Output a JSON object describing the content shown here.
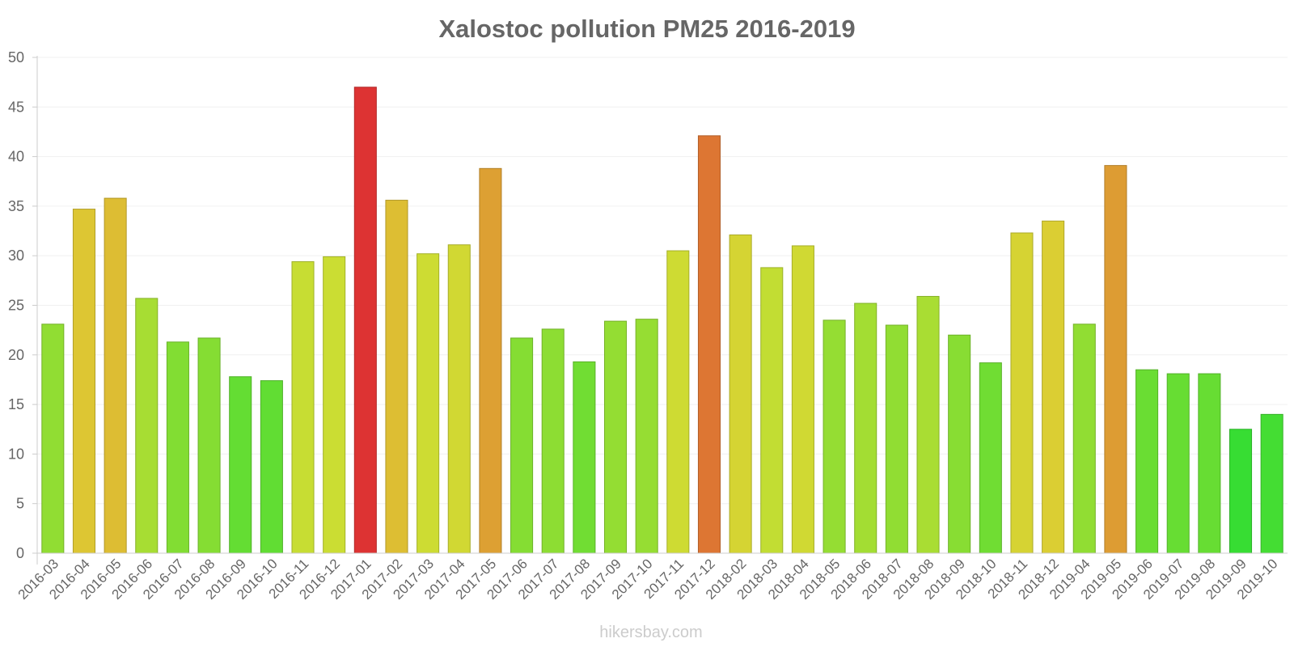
{
  "chart_data": {
    "type": "bar",
    "title": "Xalostoc pollution PM25 2016-2019",
    "xlabel": "",
    "ylabel": "",
    "ylim": [
      0,
      50
    ],
    "yticks": [
      0,
      5,
      10,
      15,
      20,
      25,
      30,
      35,
      40,
      45,
      50
    ],
    "grid": true,
    "categories": [
      "2016-03",
      "2016-04",
      "2016-05",
      "2016-06",
      "2016-07",
      "2016-08",
      "2016-09",
      "2016-10",
      "2016-11",
      "2016-12",
      "2017-01",
      "2017-02",
      "2017-03",
      "2017-04",
      "2017-05",
      "2017-06",
      "2017-07",
      "2017-08",
      "2017-09",
      "2017-10",
      "2017-11",
      "2017-12",
      "2018-02",
      "2018-03",
      "2018-04",
      "2018-05",
      "2018-06",
      "2018-07",
      "2018-08",
      "2018-09",
      "2018-10",
      "2018-11",
      "2018-12",
      "2019-04",
      "2019-05",
      "2019-06",
      "2019-07",
      "2019-08",
      "2019-09",
      "2019-10"
    ],
    "values": [
      23.1,
      34.7,
      35.8,
      25.7,
      21.3,
      21.7,
      17.8,
      17.4,
      29.4,
      29.9,
      47.0,
      35.6,
      30.2,
      31.1,
      38.8,
      21.7,
      22.6,
      19.3,
      23.4,
      23.6,
      30.5,
      42.1,
      32.1,
      28.8,
      31.0,
      23.5,
      25.2,
      23.0,
      25.9,
      22.0,
      19.2,
      32.3,
      33.5,
      23.1,
      39.1,
      18.5,
      18.1,
      18.1,
      12.5,
      14.0
    ]
  },
  "watermark": "hikersbay.com",
  "colors": {
    "text": "#666666",
    "axis": "#cccccc",
    "grid": "#f0f0f0",
    "watermark": "#cccccc"
  }
}
